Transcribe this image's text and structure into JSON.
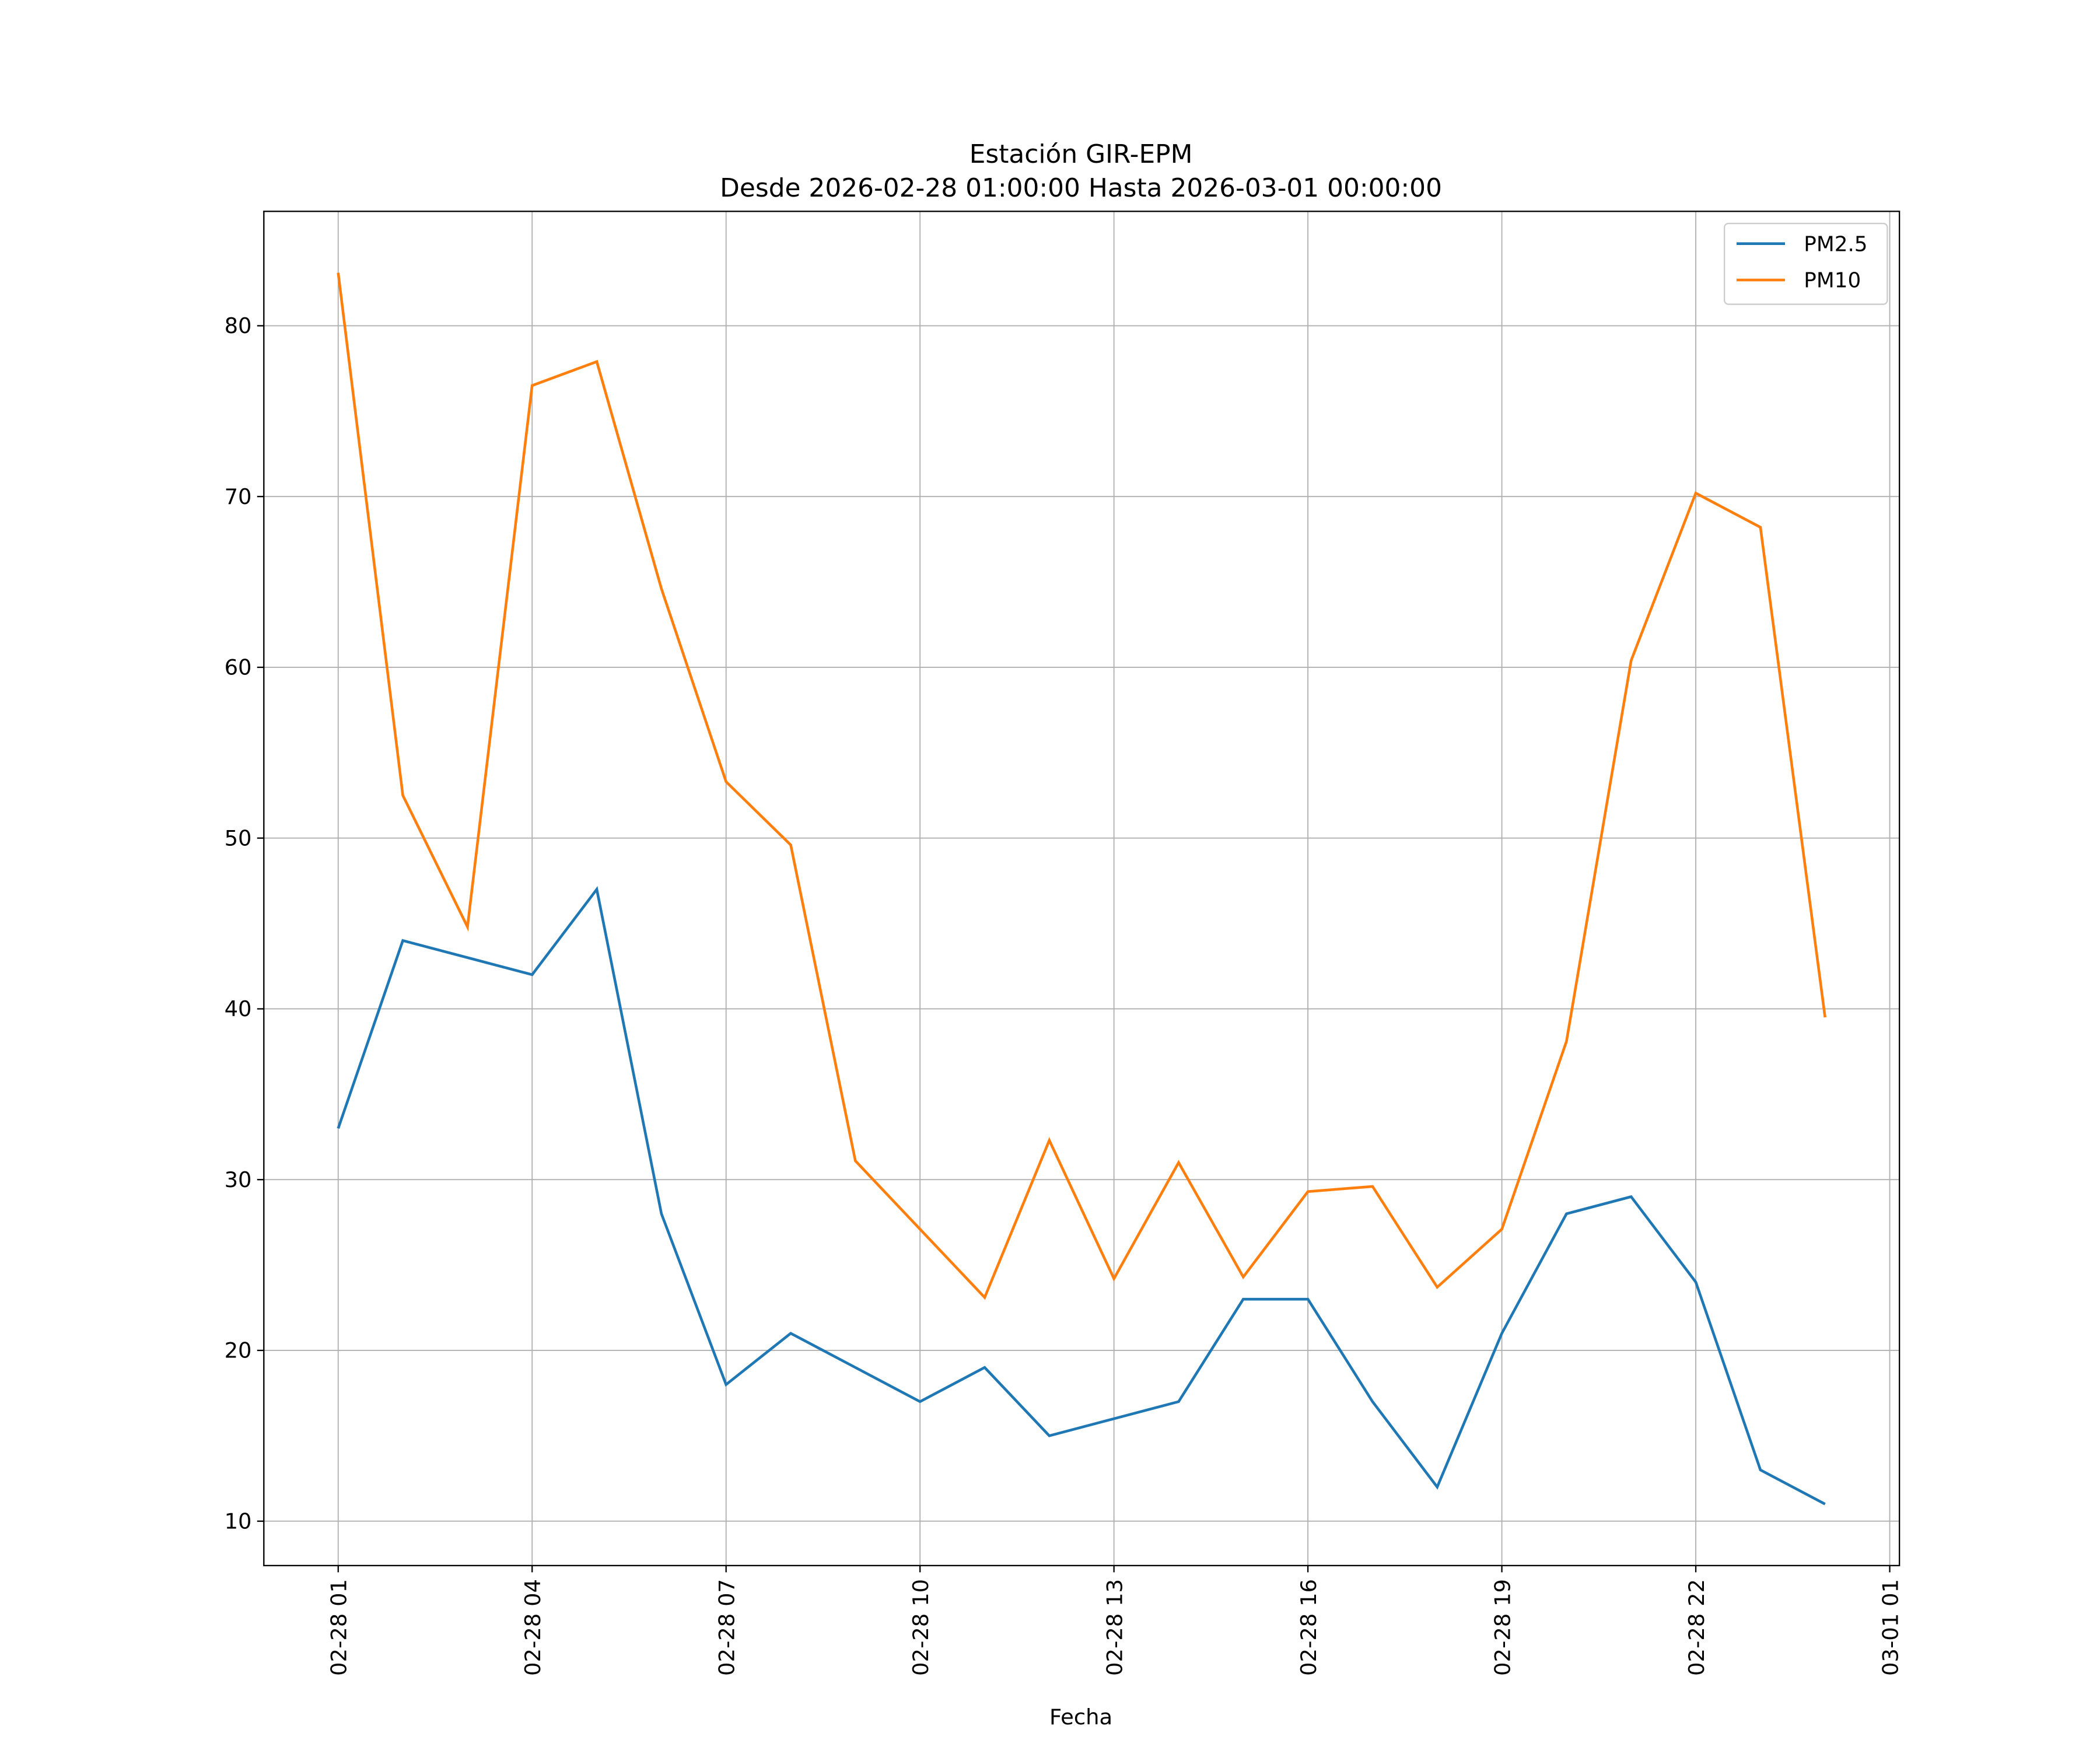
{
  "chart_data": {
    "type": "line",
    "title": "Estación GIR-EPM",
    "subtitle": "Desde 2026-02-28 01:00:00 Hasta 2026-03-01 00:00:00",
    "xlabel": "Fecha",
    "ylabel": "",
    "x": [
      "02-28 01",
      "02-28 02",
      "02-28 03",
      "02-28 04",
      "02-28 05",
      "02-28 06",
      "02-28 07",
      "02-28 08",
      "02-28 09",
      "02-28 10",
      "02-28 11",
      "02-28 12",
      "02-28 13",
      "02-28 14",
      "02-28 15",
      "02-28 16",
      "02-28 17",
      "02-28 18",
      "02-28 19",
      "02-28 20",
      "02-28 21",
      "02-28 22",
      "02-28 23",
      "03-01 00"
    ],
    "x_ticks": [
      "02-28 01",
      "02-28 04",
      "02-28 07",
      "02-28 10",
      "02-28 13",
      "02-28 16",
      "02-28 19",
      "02-28 22",
      "03-01 01"
    ],
    "x_tick_hours": [
      0,
      3,
      6,
      9,
      12,
      15,
      18,
      21,
      24
    ],
    "xlim_hours": [
      -1.15,
      24.15
    ],
    "y_ticks": [
      10,
      20,
      30,
      40,
      50,
      60,
      70,
      80
    ],
    "ylim": [
      7.4,
      86.7
    ],
    "grid": true,
    "legend_position": "top-right",
    "series": [
      {
        "name": "PM2.5",
        "color": "#1f77b4",
        "values": [
          33,
          44,
          43,
          42,
          47,
          28,
          18,
          21,
          19,
          17,
          19,
          15,
          16,
          17,
          23,
          23,
          17,
          12,
          21,
          28,
          29,
          24,
          13,
          11
        ]
      },
      {
        "name": "PM10",
        "color": "#ff7f0e",
        "values": [
          83.1,
          52.5,
          44.8,
          76.5,
          77.9,
          64.6,
          53.3,
          49.6,
          31.1,
          27.1,
          23.1,
          32.3,
          24.2,
          31.0,
          24.3,
          29.3,
          29.6,
          23.7,
          27.1,
          38.1,
          60.4,
          70.2,
          68.2,
          39.5
        ]
      }
    ]
  }
}
